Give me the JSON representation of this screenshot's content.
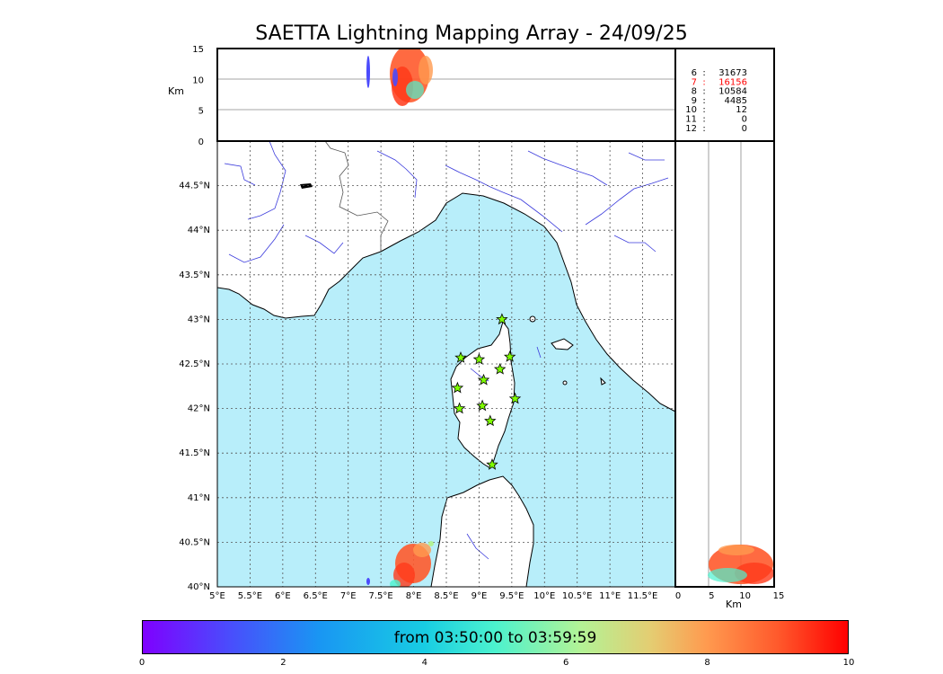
{
  "title": "SAETTA Lightning Mapping Array - 24/09/25",
  "alt_axis_label": "Km",
  "alt_ticks": [
    "0",
    "5",
    "10",
    "15"
  ],
  "lat_ticks": [
    "40°N",
    "40.5°N",
    "41°N",
    "41.5°N",
    "42°N",
    "42.5°N",
    "43°N",
    "43.5°N",
    "44°N",
    "44.5°N"
  ],
  "lon_ticks": [
    "5°E",
    "5.5°E",
    "6°E",
    "6.5°E",
    "7°E",
    "7.5°E",
    "8°E",
    "8.5°E",
    "9°E",
    "9.5°E",
    "10°E",
    "10.5°E",
    "11°E",
    "11.5°E"
  ],
  "side_axis_ticks": [
    "0",
    "5",
    "10",
    "15"
  ],
  "side_axis_label": "Km",
  "station_counts": [
    {
      "stations": "6",
      "sep": ":",
      "count": "31673",
      "color": "#000000"
    },
    {
      "stations": "7",
      "sep": ":",
      "count": "16156",
      "color": "#ff0000"
    },
    {
      "stations": "8",
      "sep": ":",
      "count": "10584",
      "color": "#000000"
    },
    {
      "stations": "9",
      "sep": ":",
      "count": "4485",
      "color": "#000000"
    },
    {
      "stations": "10",
      "sep": ":",
      "count": "12",
      "color": "#000000"
    },
    {
      "stations": "11",
      "sep": ":",
      "count": "0",
      "color": "#000000"
    },
    {
      "stations": "12",
      "sep": ":",
      "count": "0",
      "color": "#000000"
    }
  ],
  "stations": [
    {
      "lon": 9.35,
      "lat": 43.0
    },
    {
      "lon": 8.72,
      "lat": 42.57
    },
    {
      "lon": 9.0,
      "lat": 42.55
    },
    {
      "lon": 9.47,
      "lat": 42.58
    },
    {
      "lon": 9.07,
      "lat": 42.32
    },
    {
      "lon": 9.32,
      "lat": 42.44
    },
    {
      "lon": 8.67,
      "lat": 42.23
    },
    {
      "lon": 9.55,
      "lat": 42.11
    },
    {
      "lon": 9.05,
      "lat": 42.03
    },
    {
      "lon": 8.7,
      "lat": 42.0
    },
    {
      "lon": 9.17,
      "lat": 41.86
    },
    {
      "lon": 9.2,
      "lat": 41.37
    }
  ],
  "colorbar": {
    "label": "from 03:50:00 to 03:59:59",
    "ticks": [
      "0",
      "2",
      "4",
      "6",
      "8",
      "10"
    ],
    "colors": [
      "#7f00ff",
      "#1996f3",
      "#4cf2ce",
      "#e4cd72",
      "#ff5a2c",
      "#ff0000"
    ]
  },
  "map_colors": {
    "sea": "#b8eefa",
    "land": "#ffffff",
    "river": "#3b3bdc",
    "grid": "#555555"
  }
}
